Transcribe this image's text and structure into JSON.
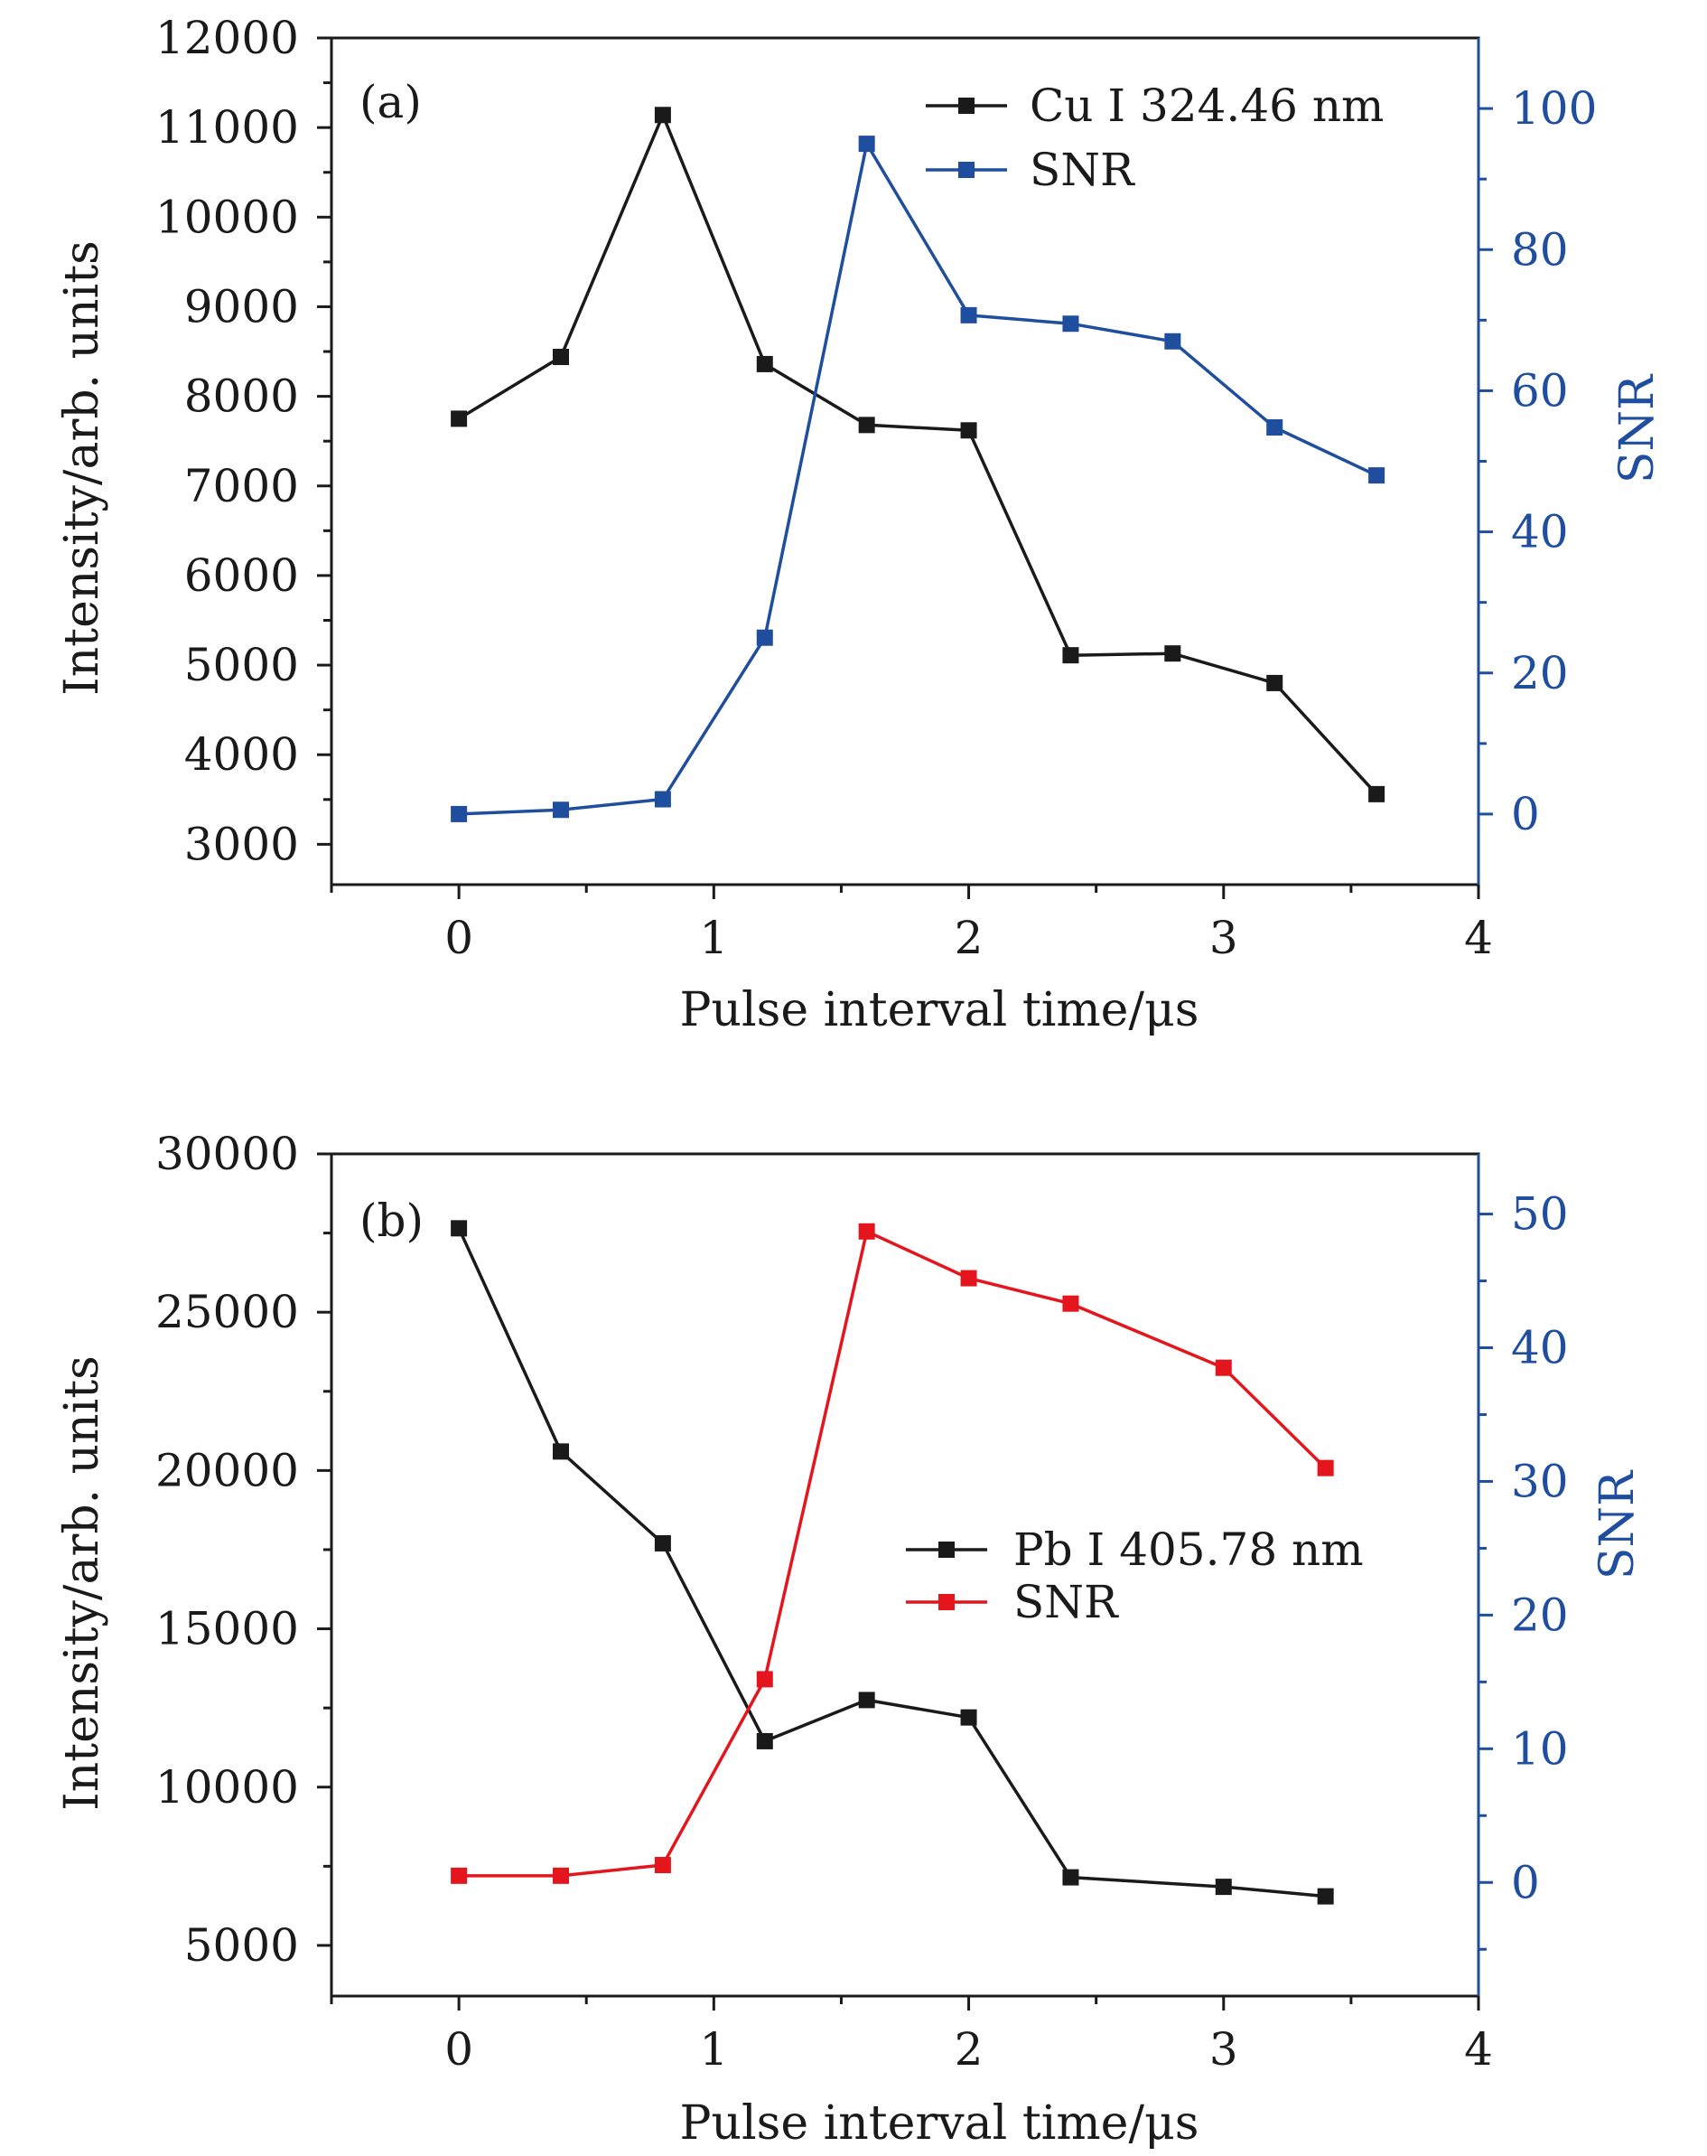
{
  "chart_data": [
    {
      "panel_label": "(a)",
      "type": "line",
      "xlabel": "Pulse interval time/μs",
      "ylabel_left": "Intensity/arb. units",
      "ylabel_right": "SNR",
      "xlim": [
        -0.5,
        4
      ],
      "ylim_left": [
        2550,
        12000
      ],
      "ylim_right": [
        -10,
        110
      ],
      "xticks": [
        0,
        1,
        2,
        3,
        4
      ],
      "yticks_left": [
        3000,
        4000,
        5000,
        6000,
        7000,
        8000,
        9000,
        10000,
        11000,
        12000
      ],
      "yticks_right": [
        0,
        20,
        40,
        60,
        80,
        100
      ],
      "x": [
        0,
        0.4,
        0.8,
        1.2,
        1.6,
        2.0,
        2.4,
        2.8,
        3.2,
        3.6
      ],
      "series": [
        {
          "name": "Cu I 324.46 nm",
          "axis": "left",
          "color": "#1a1a1a",
          "values": [
            7750,
            8440,
            11140,
            8360,
            7680,
            7620,
            5110,
            5130,
            4800,
            3560
          ]
        },
        {
          "name": "SNR",
          "axis": "right",
          "color": "#1f4e9e",
          "values": [
            0,
            0.6,
            2.1,
            25,
            95,
            70.7,
            69.5,
            67,
            54.8,
            48
          ]
        }
      ],
      "legend_position": "top-right",
      "grid": false
    },
    {
      "panel_label": "(b)",
      "type": "line",
      "xlabel": "Pulse interval time/μs",
      "ylabel_left": "Intensity/arb. units",
      "ylabel_right": "SNR",
      "xlim": [
        -0.5,
        4
      ],
      "ylim_left": [
        3400,
        30000
      ],
      "ylim_right": [
        -8.5,
        54.5
      ],
      "xticks": [
        0,
        1,
        2,
        3,
        4
      ],
      "yticks_left": [
        5000,
        10000,
        15000,
        20000,
        25000,
        30000
      ],
      "yticks_right": [
        0,
        10,
        20,
        30,
        40,
        50
      ],
      "x": [
        0,
        0.4,
        0.8,
        1.2,
        1.6,
        2.0,
        2.4,
        3.0,
        3.4
      ],
      "series": [
        {
          "name": "Pb I 405.78 nm",
          "axis": "left",
          "color": "#1a1a1a",
          "values": [
            27650,
            20600,
            17700,
            11450,
            12750,
            12200,
            7150,
            6850,
            6550
          ]
        },
        {
          "name": "SNR",
          "axis": "right",
          "color": "#e4151c",
          "values": [
            0.5,
            0.5,
            1.3,
            15.2,
            48.7,
            45.2,
            43.3,
            38.5,
            31
          ]
        }
      ],
      "legend_position": "center-right",
      "grid": false
    }
  ]
}
